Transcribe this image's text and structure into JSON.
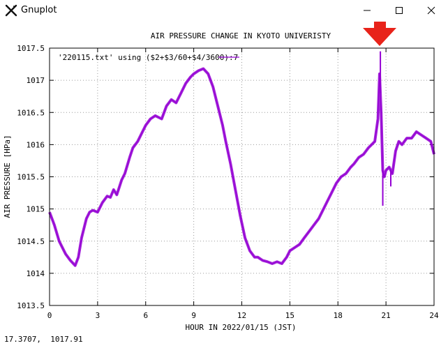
{
  "window": {
    "title": "Gnuplot",
    "app_icon": "gnuplot-x-icon",
    "controls": [
      "minimize-icon",
      "maximize-icon",
      "close-icon"
    ]
  },
  "status_bar": {
    "coordinates": "17.3707,  1017.91"
  },
  "annotation": {
    "icon": "red-down-arrow",
    "color": "#e8231a"
  },
  "chart_data": {
    "type": "line",
    "title": "AIR PRESSURE CHANGE IN KYOTO UNIVERISTY",
    "xlabel": "HOUR IN 2022/01/15 (JST)",
    "ylabel": "AIR PRESSURE [HPa]",
    "xlim": [
      0,
      24
    ],
    "ylim": [
      1013.5,
      1017.5
    ],
    "x_ticks": [
      "0",
      "3",
      "6",
      "9",
      "12",
      "15",
      "18",
      "21",
      "24"
    ],
    "y_ticks": [
      "1013.5",
      "1014",
      "1014.5",
      "1015",
      "1015.5",
      "1016",
      "1016.5",
      "1017",
      "1017.5"
    ],
    "grid": true,
    "legend_position": "top-left",
    "series": [
      {
        "name": "'220115.txt' using ($2+$3/60+$4/3600):7",
        "color": "#9400d3",
        "x": [
          0,
          0.3,
          0.6,
          1.0,
          1.3,
          1.6,
          1.8,
          2.0,
          2.3,
          2.5,
          2.7,
          3.0,
          3.3,
          3.6,
          3.8,
          4.0,
          4.2,
          4.5,
          4.7,
          5.0,
          5.2,
          5.5,
          5.8,
          6.0,
          6.3,
          6.6,
          7.0,
          7.3,
          7.6,
          7.9,
          8.2,
          8.5,
          8.8,
          9.0,
          9.3,
          9.6,
          9.9,
          10.2,
          10.5,
          10.8,
          11.0,
          11.3,
          11.6,
          11.9,
          12.2,
          12.5,
          12.8,
          13.0,
          13.3,
          13.6,
          13.9,
          14.2,
          14.5,
          14.8,
          15.0,
          15.3,
          15.6,
          15.9,
          16.2,
          16.5,
          16.8,
          17.0,
          17.3,
          17.6,
          17.9,
          18.2,
          18.5,
          18.8,
          19.0,
          19.3,
          19.6,
          19.9,
          20.1,
          20.3,
          20.5,
          20.6,
          20.7,
          20.8,
          20.9,
          21.0,
          21.2,
          21.4,
          21.6,
          21.8,
          22.0,
          22.3,
          22.6,
          22.9,
          23.2,
          23.5,
          23.8,
          24.0
        ],
        "y": [
          1014.95,
          1014.75,
          1014.5,
          1014.3,
          1014.2,
          1014.12,
          1014.25,
          1014.55,
          1014.85,
          1014.95,
          1014.98,
          1014.95,
          1015.1,
          1015.2,
          1015.18,
          1015.3,
          1015.22,
          1015.45,
          1015.55,
          1015.8,
          1015.95,
          1016.05,
          1016.2,
          1016.3,
          1016.4,
          1016.45,
          1016.4,
          1016.6,
          1016.7,
          1016.65,
          1016.8,
          1016.95,
          1017.05,
          1017.1,
          1017.15,
          1017.18,
          1017.1,
          1016.9,
          1016.6,
          1016.3,
          1016.05,
          1015.7,
          1015.3,
          1014.9,
          1014.55,
          1014.35,
          1014.25,
          1014.25,
          1014.2,
          1014.18,
          1014.15,
          1014.18,
          1014.15,
          1014.25,
          1014.35,
          1014.4,
          1014.45,
          1014.55,
          1014.65,
          1014.75,
          1014.85,
          1014.95,
          1015.1,
          1015.25,
          1015.4,
          1015.5,
          1015.55,
          1015.65,
          1015.7,
          1015.8,
          1015.85,
          1015.95,
          1016.0,
          1016.05,
          1016.4,
          1017.1,
          1016.5,
          1015.6,
          1015.5,
          1015.6,
          1015.65,
          1015.55,
          1015.9,
          1016.05,
          1016.0,
          1016.1,
          1016.1,
          1016.2,
          1016.15,
          1016.1,
          1016.05,
          1015.85
        ],
        "spikes": [
          {
            "x": 20.65,
            "y": 1017.45
          },
          {
            "x": 20.8,
            "y": 1015.05
          },
          {
            "x": 21.3,
            "y": 1015.35
          }
        ]
      }
    ]
  }
}
